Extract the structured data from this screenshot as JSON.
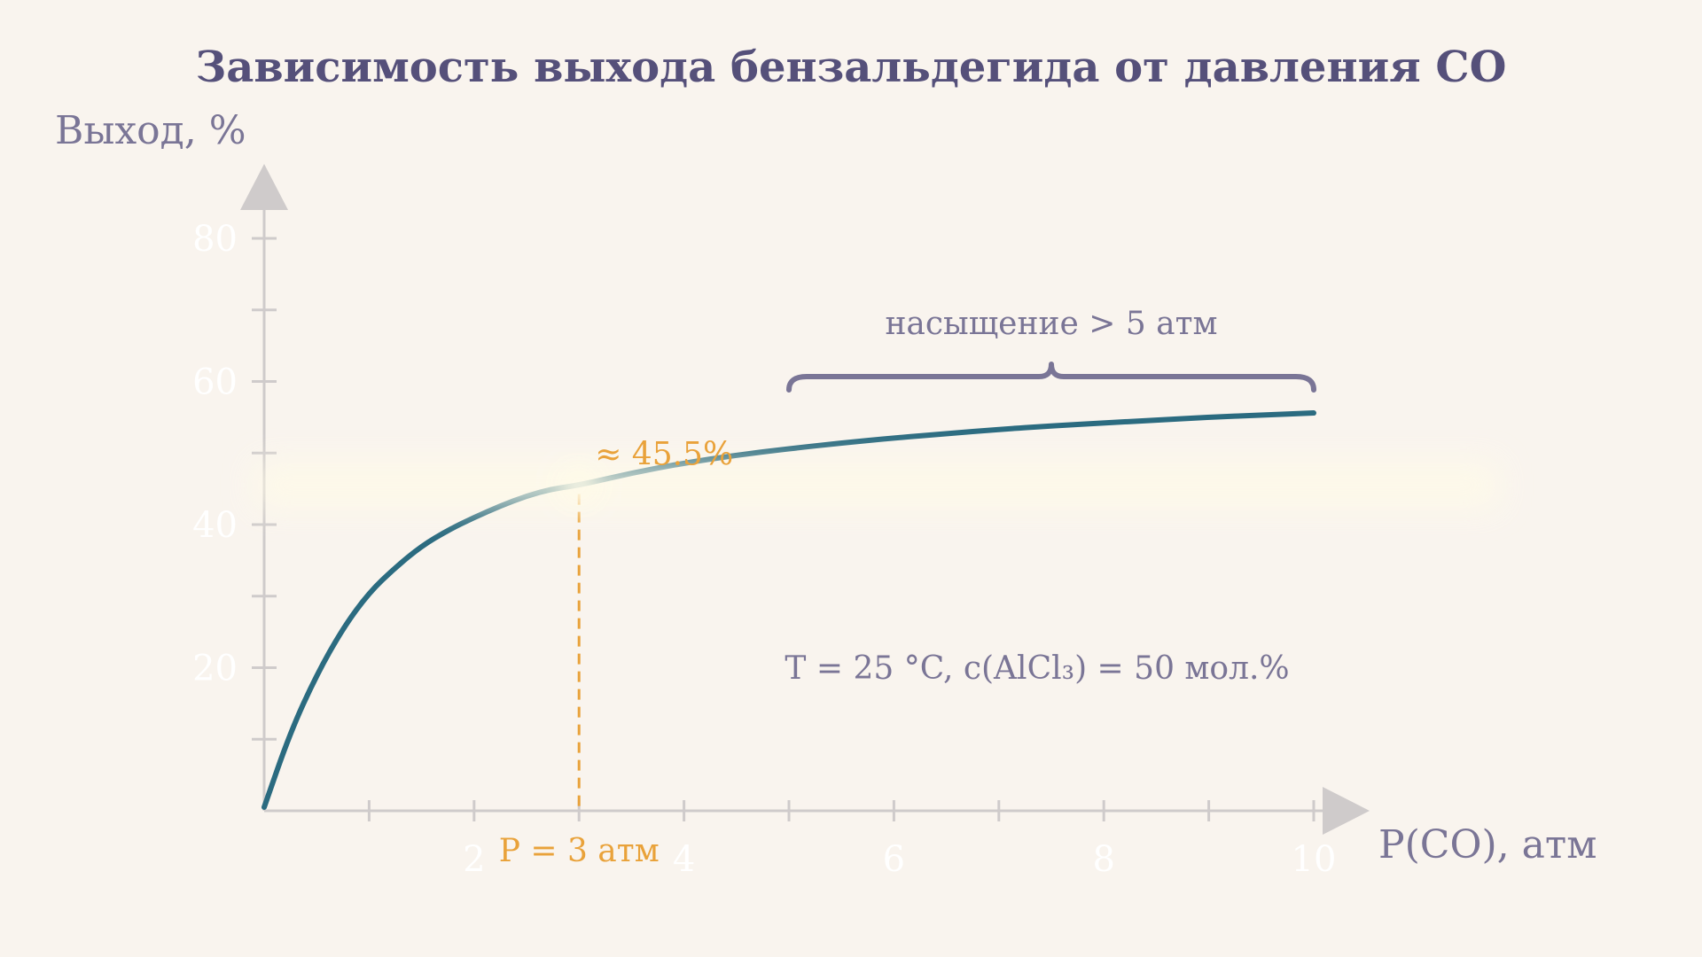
{
  "chart_data": {
    "type": "line",
    "title": "Зависимость выхода бензальдегида от давления CO",
    "xlabel": "P(CO), атм",
    "ylabel": "Выход, %",
    "xlim": [
      0,
      10
    ],
    "ylim": [
      0,
      80
    ],
    "x_ticks": [
      1,
      2,
      3,
      4,
      5,
      6,
      7,
      8,
      9,
      10
    ],
    "x_tick_labels": [
      "2",
      "4",
      "6",
      "8",
      "10"
    ],
    "x_tick_label_values": [
      2,
      4,
      6,
      8,
      10
    ],
    "y_ticks": [
      10,
      20,
      30,
      40,
      50,
      60,
      70,
      80
    ],
    "y_tick_labels": [
      "20",
      "40",
      "60",
      "80"
    ],
    "y_tick_label_values": [
      20,
      40,
      60,
      80
    ],
    "grid": false,
    "series": [
      {
        "x": [
          0,
          0.25,
          0.5,
          0.75,
          1,
          1.25,
          1.5,
          1.75,
          2,
          2.25,
          2.5,
          2.75,
          3,
          3.5,
          4,
          4.5,
          5,
          5.5,
          6,
          6.5,
          7,
          7.5,
          8,
          8.5,
          9,
          9.5,
          10
        ],
        "y": [
          0.5,
          11,
          19,
          25.5,
          30.5,
          34,
          37,
          39.2,
          41,
          42.6,
          44,
          45,
          45.5,
          47.2,
          48.6,
          49.7,
          50.6,
          51.4,
          52.1,
          52.7,
          53.3,
          53.8,
          54.2,
          54.6,
          55,
          55.3,
          55.6
        ],
        "color": "#2b6b80"
      }
    ],
    "highlight": {
      "x": 3,
      "y": 45.5,
      "point_label": "≈ 45.5%",
      "x_label": "P = 3 атм",
      "color": "#e9a23a"
    },
    "brace": {
      "x_start": 5,
      "x_end": 10,
      "label": "насыщение  > 5 атм",
      "color": "#7a7596"
    },
    "conditions": "T  = 25 °C,   c(AlCl₃)  = 50 мол.%",
    "colors": {
      "background": "#f9f4ee",
      "axis": "#cfcbcb",
      "title": "#55507a",
      "axis_label": "#7a7596",
      "tick_label": "#ffffff",
      "glow": "#fffbe8"
    }
  }
}
